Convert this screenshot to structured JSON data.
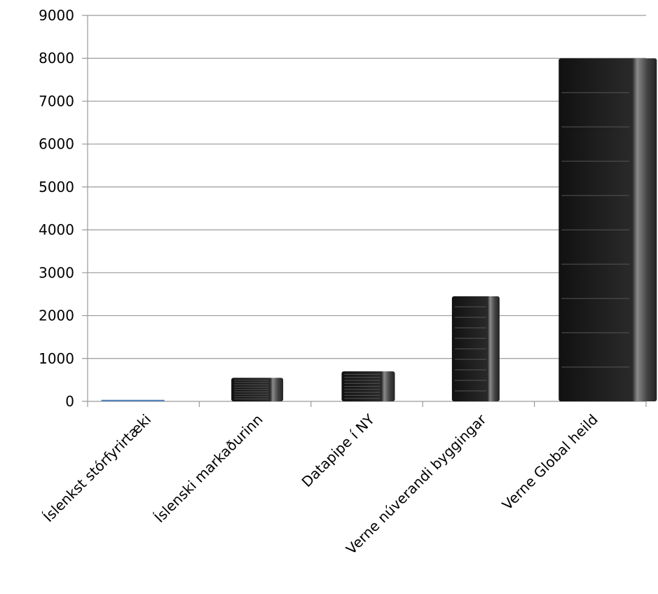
{
  "chart_data": {
    "type": "bar",
    "categories": [
      "Íslenkst stórfyrirtæki",
      "Íslenski markaðurinn",
      "Datapipe í NY",
      "Verne núverandi byggingar",
      "Verne Global heild"
    ],
    "values": [
      20,
      550,
      700,
      2450,
      8000
    ],
    "colors": [
      "#4f81bd",
      "#1c1c1c",
      "#1c1c1c",
      "#1c1c1c",
      "#1c1c1c"
    ],
    "ylim": [
      0,
      9000
    ],
    "yticks": [
      0,
      1000,
      2000,
      3000,
      4000,
      5000,
      6000,
      7000,
      8000,
      9000
    ],
    "grid": true
  }
}
